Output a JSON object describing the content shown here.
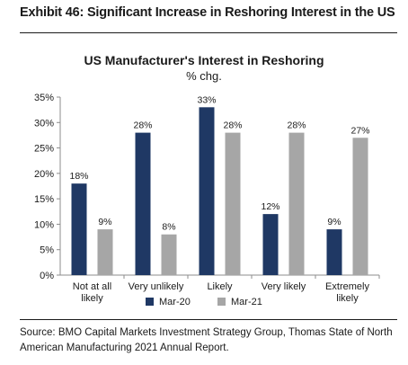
{
  "exhibit_title": "Exhibit 46: Significant Increase in Reshoring Interest in the US",
  "chart_data": {
    "type": "bar",
    "title": "US Manufacturer's Interest in Reshoring",
    "subtitle": "% chg.",
    "categories": [
      [
        "Not at all",
        "likely"
      ],
      [
        "Very unlikely"
      ],
      [
        "Likely"
      ],
      [
        "Very likely"
      ],
      [
        "Extremely",
        "likely"
      ]
    ],
    "series": [
      {
        "name": "Mar-20",
        "color": "#1f3864",
        "values": [
          18,
          28,
          33,
          12,
          9
        ],
        "labels": [
          "18%",
          "28%",
          "33%",
          "12%",
          "9%"
        ]
      },
      {
        "name": "Mar-21",
        "color": "#a6a6a6",
        "values": [
          9,
          8,
          28,
          28,
          27
        ],
        "labels": [
          "9%",
          "8%",
          "28%",
          "28%",
          "27%"
        ]
      }
    ],
    "ylim": [
      0,
      35
    ],
    "yticks": [
      0,
      5,
      10,
      15,
      20,
      25,
      30,
      35
    ],
    "ytick_labels": [
      "0%",
      "5%",
      "10%",
      "15%",
      "20%",
      "25%",
      "30%",
      "35%"
    ],
    "grid": false,
    "legend_position": "bottom"
  },
  "source": "Source: BMO Capital Markets Investment Strategy Group, Thomas State of North American Manufacturing 2021 Annual Report."
}
